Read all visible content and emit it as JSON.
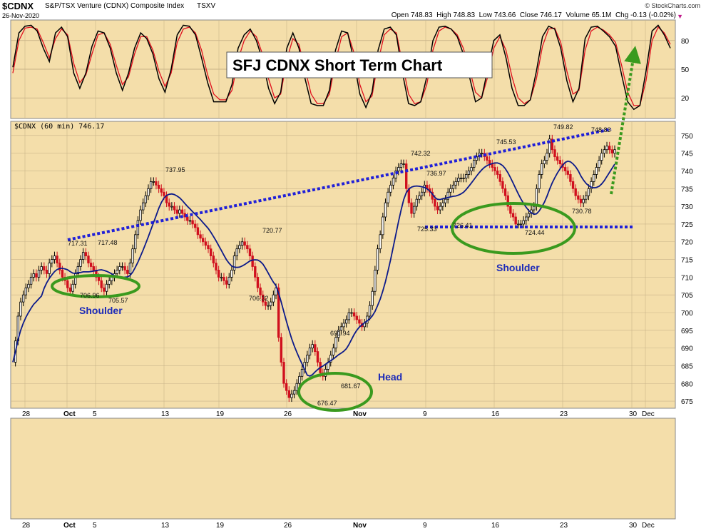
{
  "header": {
    "symbol": "$CDNX",
    "name": "S&P/TSX Venture (CDNX) Composite Index",
    "exchange": "TSXV",
    "date": "26-Nov-2020",
    "open_label": "Open",
    "open": "748.83",
    "high_label": "High",
    "high": "748.83",
    "low_label": "Low",
    "low": "743.66",
    "close_label": "Close",
    "close": "746.17",
    "volume_label": "Volume",
    "volume": "65.1M",
    "chg_label": "Chg",
    "chg": "-0.13 (-0.02%)",
    "credit": "© StockCharts.com"
  },
  "colors": {
    "panel_bg": "#f4deaa",
    "up_bar": "#000000",
    "down_bar": "#d0101e",
    "ma_line": "#0c1a8a",
    "trend_line": "#2020d8",
    "ellipse": "#3a9a1e",
    "arrow": "#3a9a1e",
    "annotation_text": "#1c2ab8",
    "stoch_k": "#000000",
    "stoch_d": "#e0101e"
  },
  "chart_data": [
    {
      "type": "line",
      "panel": "stochastic",
      "y_ticks": [
        "80",
        "50",
        "20"
      ],
      "ylim": [
        0,
        100
      ],
      "series": [
        {
          "values": [
            52,
            88,
            95,
            96,
            90,
            72,
            58,
            88,
            94,
            84,
            46,
            30,
            46,
            74,
            90,
            88,
            72,
            46,
            28,
            46,
            72,
            88,
            82,
            66,
            40,
            26,
            50,
            86,
            96,
            95,
            86,
            62,
            36,
            16,
            16,
            16,
            34,
            72,
            86,
            92,
            80,
            60,
            30,
            14,
            26,
            72,
            88,
            72,
            40,
            14,
            12,
            12,
            28,
            70,
            90,
            88,
            60,
            24,
            10,
            26,
            70,
            92,
            94,
            86,
            46,
            14,
            12,
            16,
            42,
            80,
            94,
            95,
            92,
            84,
            66,
            42,
            16,
            20,
            50,
            80,
            86,
            62,
            30,
            12,
            12,
            18,
            48,
            84,
            95,
            92,
            72,
            38,
            16,
            30,
            82,
            94,
            95,
            90,
            84,
            74,
            44,
            16,
            8,
            12,
            48,
            90,
            96,
            86,
            72
          ]
        },
        {
          "values": [
            46,
            80,
            93,
            94,
            92,
            78,
            62,
            82,
            92,
            86,
            56,
            36,
            44,
            66,
            86,
            88,
            76,
            54,
            34,
            42,
            66,
            84,
            84,
            70,
            48,
            32,
            46,
            78,
            92,
            94,
            88,
            70,
            44,
            24,
            18,
            18,
            28,
            60,
            80,
            90,
            84,
            66,
            40,
            20,
            24,
            60,
            82,
            76,
            50,
            24,
            14,
            14,
            24,
            58,
            84,
            88,
            68,
            34,
            16,
            22,
            58,
            86,
            92,
            88,
            56,
            24,
            14,
            16,
            34,
            70,
            90,
            94,
            92,
            86,
            72,
            50,
            26,
            20,
            42,
            72,
            84,
            70,
            42,
            20,
            14,
            18,
            40,
            74,
            92,
            93,
            78,
            48,
            24,
            28,
            70,
            90,
            94,
            91,
            86,
            78,
            54,
            26,
            12,
            12,
            38,
            80,
            94,
            88,
            76
          ]
        }
      ]
    },
    {
      "type": "candlestick",
      "panel": "price",
      "panel_label": "$CDNX (60 min) 746.17",
      "ylim": [
        673,
        754
      ],
      "y_ticks": [
        675,
        680,
        685,
        690,
        695,
        700,
        705,
        710,
        715,
        720,
        725,
        730,
        735,
        740,
        745,
        750
      ],
      "x_tick_labels": [
        "28",
        "Oct",
        "5",
        "13",
        "19",
        "26",
        "Nov",
        "9",
        "16",
        "23",
        "30",
        "Dec"
      ],
      "close_series": [
        686,
        692,
        699,
        703,
        705,
        707,
        708,
        710,
        711,
        710,
        712,
        713,
        712,
        711,
        714,
        715,
        716,
        714,
        712,
        710,
        709,
        707,
        706,
        708,
        711,
        713,
        715,
        717,
        716,
        714,
        713,
        712,
        710,
        709,
        707,
        706,
        708,
        709,
        710,
        711,
        712,
        713,
        713,
        712,
        711,
        714,
        718,
        722,
        726,
        729,
        731,
        733,
        735,
        737,
        737,
        736,
        735,
        734,
        733,
        731,
        730,
        730,
        729,
        728,
        729,
        728,
        727,
        726,
        726,
        725,
        724,
        722,
        721,
        720,
        719,
        718,
        716,
        714,
        712,
        710,
        710,
        709,
        708,
        710,
        712,
        716,
        718,
        719,
        720,
        719,
        718,
        716,
        713,
        710,
        707,
        705,
        703,
        702,
        702,
        703,
        705,
        707,
        693,
        686,
        680,
        678,
        676,
        677,
        678,
        680,
        682,
        684,
        686,
        688,
        690,
        691,
        689,
        686,
        683,
        682,
        684,
        686,
        688,
        690,
        693,
        695,
        696,
        697,
        698,
        700,
        700,
        699,
        698,
        697,
        696,
        697,
        699,
        702,
        706,
        712,
        718,
        722,
        727,
        731,
        734,
        736,
        738,
        740,
        741,
        742,
        742,
        735,
        731,
        728,
        730,
        732,
        733,
        734,
        736,
        735,
        734,
        732,
        730,
        729,
        730,
        731,
        732,
        734,
        735,
        736,
        737,
        738,
        738,
        738,
        739,
        740,
        741,
        743,
        744,
        745,
        745,
        744,
        743,
        742,
        741,
        740,
        739,
        737,
        735,
        733,
        730,
        728,
        727,
        725,
        725,
        725,
        726,
        727,
        728,
        729,
        730,
        735,
        739,
        742,
        743,
        745,
        749,
        746,
        744,
        743,
        742,
        741,
        740,
        739,
        737,
        735,
        733,
        732,
        731,
        732,
        733,
        735,
        737,
        739,
        741,
        743,
        745,
        746,
        747,
        746,
        745,
        746
      ]
    }
  ],
  "price_labels": [
    {
      "value": "717.31"
    },
    {
      "value": "717.48"
    },
    {
      "value": "706.96"
    },
    {
      "value": "705.57"
    },
    {
      "value": "737.95"
    },
    {
      "value": "720.77"
    },
    {
      "value": "706.32"
    },
    {
      "value": "691.94"
    },
    {
      "value": "681.67"
    },
    {
      "value": "676.47"
    },
    {
      "value": "742.32"
    },
    {
      "value": "736.97"
    },
    {
      "value": "725.33"
    },
    {
      "value": "726.41"
    },
    {
      "value": "745.53"
    },
    {
      "value": "724.44"
    },
    {
      "value": "749.82"
    },
    {
      "value": "730.78"
    },
    {
      "value": "748.83"
    }
  ],
  "annotations": {
    "title": "SFJ CDNX Short Term Chart",
    "left_shoulder": "Shoulder",
    "head": "Head",
    "right_shoulder": "Shoulder"
  }
}
